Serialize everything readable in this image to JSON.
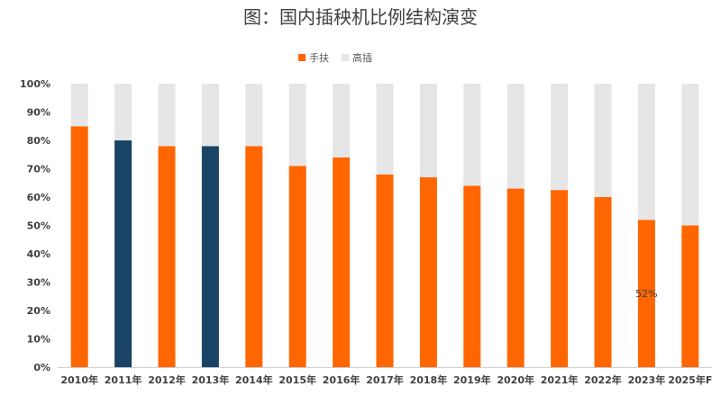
{
  "chart_data": {
    "type": "bar",
    "stacked": true,
    "title": "图：国内插秧机比例结构演变",
    "xlabel": "",
    "ylabel": "",
    "categories": [
      "2010年",
      "2011年",
      "2012年",
      "2013年",
      "2014年",
      "2015年",
      "2016年",
      "2017年",
      "2018年",
      "2019年",
      "2020年",
      "2021年",
      "2022年",
      "2023年",
      "2025年F"
    ],
    "series": [
      {
        "name": "手扶",
        "color": "#ff6600",
        "highlight_color": "#1a4466",
        "highlight_indices": [
          1,
          3
        ],
        "values": [
          85,
          80,
          78,
          78,
          78,
          71,
          74,
          68,
          67,
          64,
          63,
          62.5,
          60,
          52,
          50
        ]
      },
      {
        "name": "高插",
        "color": "#e6e6e6",
        "values": [
          15,
          20,
          22,
          22,
          22,
          29,
          26,
          32,
          33,
          36,
          37,
          37.5,
          40,
          48,
          50
        ]
      }
    ],
    "yticks": [
      "0%",
      "10%",
      "20%",
      "30%",
      "40%",
      "50%",
      "60%",
      "70%",
      "80%",
      "90%",
      "100%"
    ],
    "ylim": [
      0,
      100
    ],
    "grid": false,
    "legend_position": "top-center",
    "data_labels": [
      {
        "category_index": 13,
        "series_index": 0,
        "text": "52%"
      }
    ]
  }
}
